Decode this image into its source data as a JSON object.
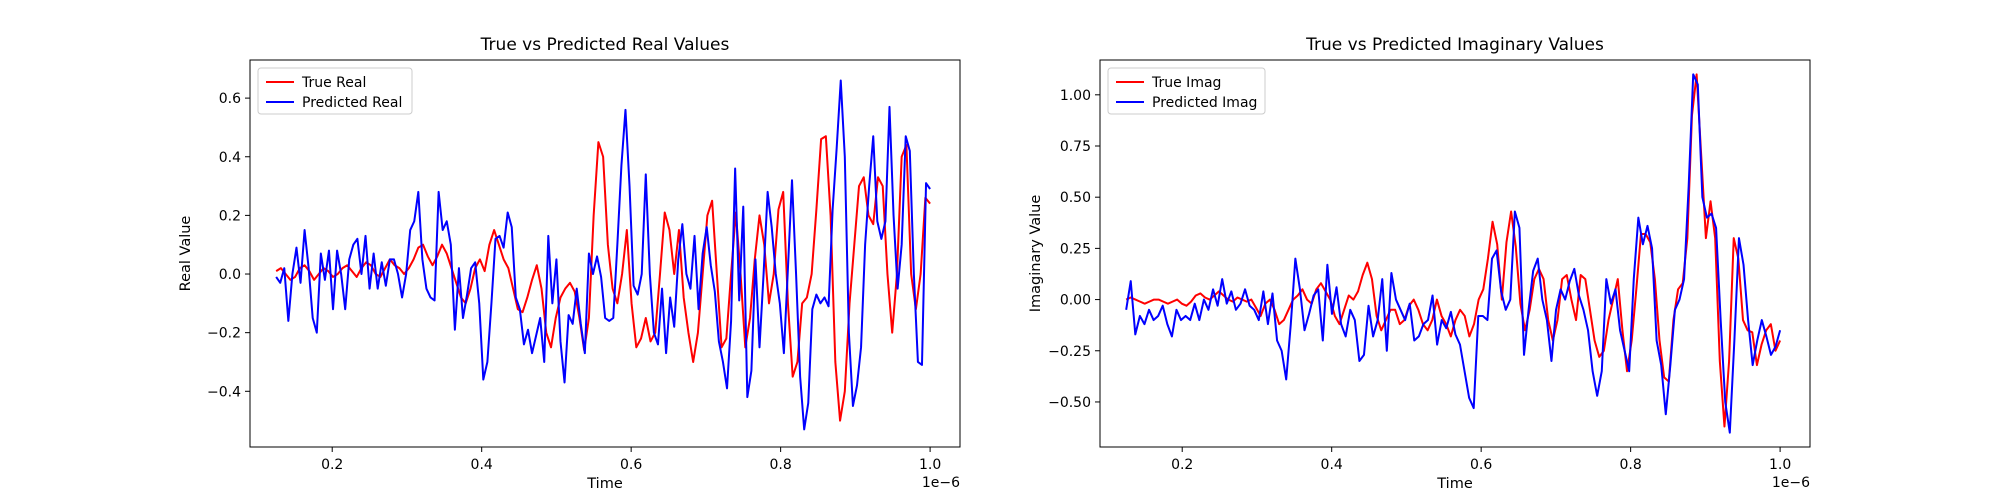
{
  "chart_data": [
    {
      "type": "line",
      "title": "True vs Predicted Real Values",
      "xlabel": "Time",
      "ylabel": "Real Value",
      "x_offset_label": "1e−6",
      "xlim": [
        0.09,
        1.04
      ],
      "ylim": [
        -0.59,
        0.73
      ],
      "xticks": [
        0.2,
        0.4,
        0.6,
        0.8,
        1.0
      ],
      "xtick_labels": [
        "0.2",
        "0.4",
        "0.6",
        "0.8",
        "1.0"
      ],
      "yticks": [
        -0.4,
        -0.2,
        0.0,
        0.2,
        0.4,
        0.6
      ],
      "ytick_labels": [
        "−0.4",
        "−0.2",
        "0.0",
        "0.2",
        "0.4",
        "0.6"
      ],
      "legend_position": "upper-left",
      "grid": false,
      "x_start": 0.125,
      "x_end": 1.0,
      "series": [
        {
          "name": "True Real",
          "color": "#ff0000",
          "values": [
            0.01,
            0.02,
            0.0,
            -0.02,
            -0.01,
            0.02,
            0.03,
            0.01,
            -0.02,
            0.0,
            0.02,
            0.01,
            -0.01,
            0.0,
            0.02,
            0.03,
            0.01,
            -0.01,
            0.02,
            0.04,
            0.03,
            0.0,
            -0.01,
            0.02,
            0.05,
            0.03,
            0.02,
            0.0,
            0.02,
            0.05,
            0.09,
            0.1,
            0.06,
            0.03,
            0.06,
            0.1,
            0.07,
            0.02,
            -0.03,
            -0.08,
            -0.1,
            -0.05,
            0.02,
            0.05,
            0.01,
            0.1,
            0.15,
            0.1,
            0.05,
            0.02,
            -0.05,
            -0.12,
            -0.13,
            -0.08,
            -0.02,
            0.03,
            -0.05,
            -0.2,
            -0.25,
            -0.15,
            -0.08,
            -0.05,
            -0.03,
            -0.06,
            -0.15,
            -0.26,
            -0.15,
            0.2,
            0.45,
            0.4,
            0.1,
            -0.05,
            -0.1,
            0.0,
            0.15,
            -0.1,
            -0.25,
            -0.22,
            -0.15,
            -0.23,
            -0.2,
            0.0,
            0.21,
            0.15,
            0.0,
            0.15,
            -0.08,
            -0.2,
            -0.3,
            -0.2,
            0.0,
            0.2,
            0.25,
            0.0,
            -0.25,
            -0.22,
            0.0,
            0.21,
            0.0,
            -0.25,
            -0.15,
            0.05,
            0.2,
            0.1,
            -0.1,
            0.0,
            0.22,
            0.28,
            -0.1,
            -0.35,
            -0.3,
            -0.1,
            -0.08,
            0.0,
            0.22,
            0.46,
            0.47,
            0.2,
            -0.3,
            -0.5,
            -0.4,
            -0.1,
            0.1,
            0.3,
            0.33,
            0.2,
            0.17,
            0.33,
            0.3,
            0.0,
            -0.2,
            0.0,
            0.4,
            0.44,
            0.0,
            -0.12,
            0.0,
            0.26,
            0.24
          ]
        },
        {
          "name": "Predicted Real",
          "color": "#0000ff",
          "values": [
            -0.01,
            -0.03,
            0.02,
            -0.16,
            0.0,
            0.09,
            -0.03,
            0.15,
            0.02,
            -0.15,
            -0.2,
            0.07,
            -0.02,
            0.08,
            -0.12,
            0.08,
            0.0,
            -0.12,
            0.05,
            0.1,
            0.12,
            0.0,
            0.13,
            -0.05,
            0.07,
            -0.05,
            0.04,
            -0.04,
            0.05,
            0.05,
            0.0,
            -0.08,
            0.0,
            0.15,
            0.18,
            0.28,
            0.05,
            -0.05,
            -0.08,
            -0.09,
            0.28,
            0.15,
            0.18,
            0.1,
            -0.19,
            0.02,
            -0.15,
            -0.07,
            0.02,
            0.04,
            -0.1,
            -0.36,
            -0.3,
            -0.1,
            0.12,
            0.13,
            0.09,
            0.21,
            0.16,
            -0.08,
            -0.12,
            -0.24,
            -0.19,
            -0.27,
            -0.21,
            -0.15,
            -0.3,
            0.13,
            -0.1,
            0.05,
            -0.23,
            -0.37,
            -0.14,
            -0.17,
            -0.05,
            -0.17,
            -0.27,
            0.07,
            0.0,
            0.06,
            -0.01,
            -0.15,
            -0.16,
            -0.15,
            0.1,
            0.37,
            0.56,
            0.3,
            -0.04,
            -0.07,
            0.0,
            0.34,
            0.0,
            -0.2,
            -0.24,
            -0.05,
            -0.27,
            -0.08,
            -0.18,
            0.05,
            0.17,
            0.0,
            -0.05,
            0.13,
            -0.12,
            0.07,
            0.16,
            0.03,
            -0.06,
            -0.23,
            -0.3,
            -0.39,
            -0.16,
            0.36,
            -0.09,
            0.23,
            -0.42,
            -0.33,
            0.05,
            -0.25,
            0.0,
            0.28,
            0.16,
            0.0,
            -0.1,
            -0.27,
            0.02,
            0.32,
            0.0,
            -0.35,
            -0.53,
            -0.44,
            -0.12,
            -0.07,
            -0.1,
            -0.08,
            -0.11,
            0.22,
            0.43,
            0.66,
            0.4,
            -0.2,
            -0.45,
            -0.38,
            -0.25,
            0.1,
            0.3,
            0.47,
            0.18,
            0.12,
            0.18,
            0.57,
            0.2,
            -0.05,
            0.1,
            0.47,
            0.42,
            0.0,
            -0.3,
            -0.31,
            0.31,
            0.29
          ]
        }
      ]
    },
    {
      "type": "line",
      "title": "True vs Predicted Imaginary Values",
      "xlabel": "Time",
      "ylabel": "Imaginary Value",
      "x_offset_label": "1e−6",
      "xlim": [
        0.09,
        1.04
      ],
      "ylim": [
        -0.72,
        1.17
      ],
      "xticks": [
        0.2,
        0.4,
        0.6,
        0.8,
        1.0
      ],
      "xtick_labels": [
        "0.2",
        "0.4",
        "0.6",
        "0.8",
        "1.0"
      ],
      "yticks": [
        -0.5,
        -0.25,
        0.0,
        0.25,
        0.5,
        0.75,
        1.0
      ],
      "ytick_labels": [
        "−0.50",
        "−0.25",
        "0.00",
        "0.25",
        "0.50",
        "0.75",
        "1.00"
      ],
      "legend_position": "upper-left",
      "grid": false,
      "x_start": 0.125,
      "x_end": 1.0,
      "series": [
        {
          "name": "True Imag",
          "color": "#ff0000",
          "values": [
            0.0,
            0.01,
            0.0,
            -0.01,
            -0.02,
            -0.01,
            0.0,
            0.0,
            -0.01,
            -0.02,
            -0.01,
            0.0,
            -0.02,
            -0.03,
            -0.01,
            0.02,
            0.03,
            0.01,
            0.0,
            0.02,
            0.04,
            0.02,
            0.0,
            -0.01,
            0.01,
            0.0,
            -0.01,
            0.0,
            -0.04,
            -0.08,
            -0.02,
            0.0,
            -0.05,
            -0.12,
            -0.1,
            -0.05,
            0.0,
            0.02,
            0.05,
            0.0,
            -0.02,
            0.05,
            0.08,
            0.04,
            0.0,
            -0.08,
            -0.12,
            -0.05,
            0.02,
            0.0,
            0.04,
            0.12,
            0.18,
            0.1,
            -0.08,
            -0.15,
            -0.1,
            -0.05,
            -0.05,
            -0.12,
            -0.1,
            -0.03,
            0.0,
            -0.05,
            -0.12,
            -0.15,
            -0.1,
            0.0,
            -0.08,
            -0.12,
            -0.18,
            -0.1,
            -0.05,
            -0.08,
            -0.18,
            -0.12,
            0.0,
            0.05,
            0.2,
            0.38,
            0.27,
            0.0,
            0.28,
            0.43,
            0.26,
            -0.02,
            -0.15,
            -0.05,
            0.1,
            0.15,
            0.1,
            -0.1,
            -0.2,
            -0.1,
            0.1,
            0.12,
            0.0,
            -0.1,
            0.12,
            0.1,
            -0.05,
            -0.2,
            -0.28,
            -0.25,
            -0.1,
            0.0,
            0.1,
            -0.15,
            -0.35,
            -0.2,
            0.05,
            0.32,
            0.32,
            0.28,
            0.1,
            -0.2,
            -0.38,
            -0.4,
            -0.1,
            0.05,
            0.08,
            0.3,
            0.9,
            1.1,
            0.7,
            0.3,
            0.48,
            0.3,
            -0.3,
            -0.62,
            -0.3,
            0.3,
            0.2,
            -0.1,
            -0.15,
            -0.16,
            -0.32,
            -0.22,
            -0.15,
            -0.12,
            -0.25,
            -0.2
          ]
        },
        {
          "name": "Predicted Imag",
          "color": "#0000ff",
          "values": [
            -0.05,
            0.09,
            -0.17,
            -0.08,
            -0.12,
            -0.05,
            -0.1,
            -0.08,
            -0.03,
            -0.12,
            -0.18,
            -0.05,
            -0.1,
            -0.08,
            -0.1,
            -0.02,
            -0.1,
            0.0,
            -0.05,
            0.05,
            -0.03,
            0.1,
            -0.02,
            0.04,
            -0.05,
            -0.02,
            0.05,
            -0.03,
            -0.05,
            -0.1,
            0.04,
            -0.12,
            0.03,
            -0.2,
            -0.25,
            -0.39,
            -0.12,
            0.2,
            0.05,
            -0.15,
            -0.07,
            0.02,
            0.05,
            -0.2,
            0.17,
            -0.07,
            0.06,
            -0.12,
            -0.18,
            -0.05,
            -0.1,
            -0.3,
            -0.27,
            -0.03,
            -0.18,
            -0.1,
            0.1,
            -0.25,
            0.13,
            0.0,
            -0.05,
            -0.1,
            -0.02,
            -0.2,
            -0.18,
            -0.12,
            -0.1,
            0.02,
            -0.22,
            -0.1,
            -0.14,
            -0.06,
            -0.17,
            -0.22,
            -0.35,
            -0.48,
            -0.53,
            -0.08,
            -0.08,
            -0.1,
            0.2,
            0.24,
            0.04,
            -0.05,
            0.0,
            0.43,
            0.35,
            -0.27,
            -0.05,
            0.14,
            0.2,
            0.0,
            -0.1,
            -0.3,
            -0.05,
            0.05,
            0.0,
            0.09,
            0.15,
            0.02,
            -0.05,
            -0.15,
            -0.35,
            -0.47,
            -0.35,
            0.1,
            -0.02,
            0.05,
            -0.15,
            -0.25,
            -0.35,
            0.1,
            0.4,
            0.27,
            0.36,
            0.25,
            -0.2,
            -0.32,
            -0.56,
            -0.32,
            -0.05,
            0.0,
            0.1,
            0.55,
            1.1,
            1.05,
            0.5,
            0.4,
            0.42,
            0.35,
            -0.1,
            -0.5,
            -0.65,
            -0.2,
            0.3,
            0.17,
            -0.1,
            -0.32,
            -0.2,
            -0.1,
            -0.18,
            -0.27,
            -0.23,
            -0.15
          ]
        }
      ]
    }
  ]
}
